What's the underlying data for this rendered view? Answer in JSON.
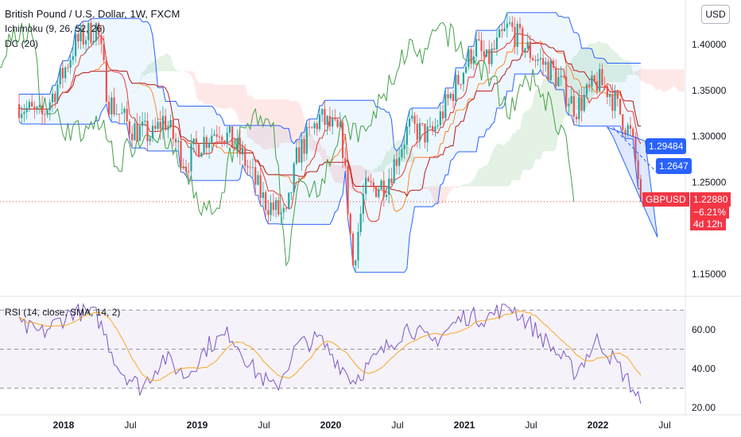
{
  "header": {
    "title": "British Pound / U.S. Dollar, 1W, FXCM",
    "indicator_ichimoku": "Ichimoku (9, 26, 52, 26)",
    "indicator_dc": "DC (20)",
    "indicator_rsi": "RSI (14, close, SMA, 14, 2)",
    "currency_button": "USD"
  },
  "price_tags": {
    "blue_1": "1.29484",
    "blue_2": "1.2647",
    "symbol": "GBPUSD",
    "last_price": "1.22880",
    "change": "−6.21%",
    "countdown": "4d 12h"
  },
  "colors": {
    "up_candle": "#26a69a",
    "down_candle": "#ef5350",
    "donchian": "#2962ff",
    "ichimoku_base": "#b71c1c",
    "ichimoku_conversion": "#e53935",
    "lagging_span": "#43a047",
    "rsi_line": "#7e57c2",
    "rsi_sma": "#f9a825"
  },
  "chart_data": [
    {
      "type": "candlestick",
      "title": "British Pound / U.S. Dollar, 1W, FXCM",
      "x_ticks": [
        "2018",
        "Jul",
        "2019",
        "Jul",
        "2020",
        "Jul",
        "2021",
        "Jul",
        "2022",
        "Jul"
      ],
      "y_ticks": [
        "1.40000",
        "1.35000",
        "1.30000",
        "1.25000",
        "1.15000"
      ],
      "ylim": [
        1.13,
        1.44
      ],
      "approx_close_path": [
        [
          "2017-09",
          1.335
        ],
        [
          "2017-11",
          1.32
        ],
        [
          "2018-01",
          1.37
        ],
        [
          "2018-02",
          1.4
        ],
        [
          "2018-04",
          1.42
        ],
        [
          "2018-05",
          1.34
        ],
        [
          "2018-07",
          1.31
        ],
        [
          "2018-09",
          1.3
        ],
        [
          "2018-10",
          1.32
        ],
        [
          "2018-12",
          1.27
        ],
        [
          "2019-01",
          1.29
        ],
        [
          "2019-03",
          1.31
        ],
        [
          "2019-05",
          1.28
        ],
        [
          "2019-07",
          1.23
        ],
        [
          "2019-09",
          1.21
        ],
        [
          "2019-10",
          1.28
        ],
        [
          "2019-12",
          1.32
        ],
        [
          "2020-02",
          1.3
        ],
        [
          "2020-03",
          1.16
        ],
        [
          "2020-04",
          1.24
        ],
        [
          "2020-06",
          1.25
        ],
        [
          "2020-08",
          1.31
        ],
        [
          "2020-10",
          1.3
        ],
        [
          "2020-12",
          1.35
        ],
        [
          "2021-02",
          1.4
        ],
        [
          "2021-03",
          1.38
        ],
        [
          "2021-05",
          1.42
        ],
        [
          "2021-07",
          1.39
        ],
        [
          "2021-09",
          1.37
        ],
        [
          "2021-11",
          1.33
        ],
        [
          "2022-01",
          1.36
        ],
        [
          "2022-02",
          1.35
        ],
        [
          "2022-04",
          1.3
        ],
        [
          "2022-05",
          1.2288
        ]
      ],
      "price_tags": [
        "1.29484",
        "1.2647",
        "1.22880"
      ],
      "change_pct": "−6.21%",
      "grid": false
    },
    {
      "type": "line",
      "title": "RSI (14, close, SMA, 14, 2)",
      "y_ticks": [
        "60.00",
        "40.00",
        "20.00"
      ],
      "ylim": [
        18,
        75
      ],
      "levels": [
        70,
        50,
        30
      ],
      "approx_rsi_path": [
        [
          "2017-09",
          62
        ],
        [
          "2017-11",
          58
        ],
        [
          "2018-02",
          70
        ],
        [
          "2018-04",
          67
        ],
        [
          "2018-06",
          40
        ],
        [
          "2018-08",
          30
        ],
        [
          "2018-10",
          46
        ],
        [
          "2018-12",
          36
        ],
        [
          "2019-02",
          52
        ],
        [
          "2019-04",
          58
        ],
        [
          "2019-06",
          40
        ],
        [
          "2019-08",
          29
        ],
        [
          "2019-10",
          52
        ],
        [
          "2019-12",
          55
        ],
        [
          "2020-03",
          34
        ],
        [
          "2020-05",
          45
        ],
        [
          "2020-08",
          62
        ],
        [
          "2020-10",
          53
        ],
        [
          "2021-01",
          67
        ],
        [
          "2021-03",
          66
        ],
        [
          "2021-05",
          73
        ],
        [
          "2021-07",
          62
        ],
        [
          "2021-09",
          50
        ],
        [
          "2021-11",
          38
        ],
        [
          "2022-01",
          55
        ],
        [
          "2022-03",
          40
        ],
        [
          "2022-05",
          22
        ]
      ],
      "grid": false
    }
  ]
}
